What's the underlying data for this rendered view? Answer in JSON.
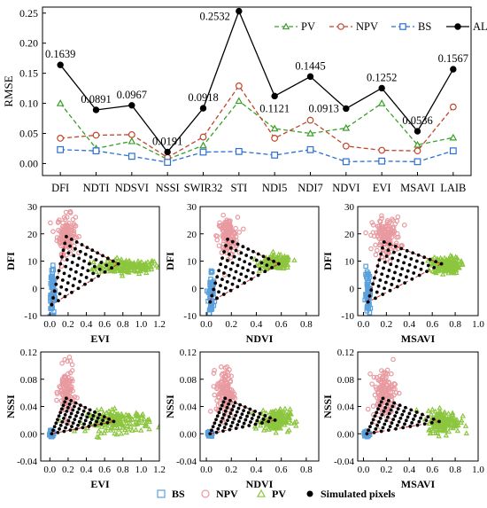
{
  "chart_data": [
    {
      "type": "line",
      "ylabel": "RMSE",
      "ylim": [
        -0.02,
        0.26
      ],
      "yticks": [
        "0.00",
        "0.05",
        "0.10",
        "0.15",
        "0.20",
        "0.25"
      ],
      "categories": [
        "DFI",
        "NDTI",
        "NDSVI",
        "NSSI",
        "SWIR32",
        "STI",
        "NDI5",
        "NDI7",
        "NDVI",
        "EVI",
        "MSAVI",
        "LAIB"
      ],
      "legend_position": "top-right",
      "series": [
        {
          "name": "PV",
          "color": "#3aa02a",
          "marker": "triangle",
          "dash": "dash",
          "values": [
            0.1,
            0.025,
            0.037,
            0.007,
            0.03,
            0.104,
            0.058,
            0.05,
            0.059,
            0.1,
            0.031,
            0.043
          ]
        },
        {
          "name": "NPV",
          "color": "#c0462b",
          "marker": "circle",
          "dash": "dash",
          "values": [
            0.042,
            0.047,
            0.048,
            0.01,
            0.044,
            0.129,
            0.042,
            0.072,
            0.029,
            0.022,
            0.021,
            0.094
          ]
        },
        {
          "name": "BS",
          "color": "#2a6fd4",
          "marker": "square",
          "dash": "dash",
          "values": [
            0.023,
            0.021,
            0.012,
            0.002,
            0.019,
            0.02,
            0.014,
            0.023,
            0.003,
            0.004,
            0.003,
            0.021
          ]
        },
        {
          "name": "ALL",
          "color": "#000000",
          "marker": "filled-circle",
          "dash": "solid",
          "values": [
            0.1639,
            0.0891,
            0.0967,
            0.0191,
            0.0918,
            0.2532,
            0.1121,
            0.1445,
            0.0913,
            0.1252,
            0.0536,
            0.1567
          ]
        }
      ],
      "value_labels": [
        {
          "index": 0,
          "text": "0.1639",
          "pos": "above"
        },
        {
          "index": 1,
          "text": "0.0891",
          "pos": "above"
        },
        {
          "index": 2,
          "text": "0.0967",
          "pos": "above"
        },
        {
          "index": 3,
          "text": "0.0191",
          "pos": "above"
        },
        {
          "index": 4,
          "text": "0.0918",
          "pos": "above"
        },
        {
          "index": 5,
          "text": "0.2532",
          "pos": "left"
        },
        {
          "index": 6,
          "text": "0.1121",
          "pos": "below"
        },
        {
          "index": 7,
          "text": "0.1445",
          "pos": "above"
        },
        {
          "index": 8,
          "text": "0.0913",
          "pos": "left"
        },
        {
          "index": 9,
          "text": "0.1252",
          "pos": "above"
        },
        {
          "index": 10,
          "text": "0.0536",
          "pos": "above"
        },
        {
          "index": 11,
          "text": "0.1567",
          "pos": "above"
        }
      ]
    },
    {
      "type": "scatter",
      "xlabel": "EVI",
      "ylabel": "DFI",
      "xlim": [
        -0.1,
        1.2
      ],
      "ylim": [
        -10,
        30
      ],
      "xticks": [
        "0.0",
        "0.2",
        "0.4",
        "0.6",
        "0.8",
        "1.0",
        "1.2"
      ],
      "yticks": [
        "-10",
        "0",
        "10",
        "20",
        "30"
      ],
      "endmembers": {
        "BS": [
          0.02,
          -6
        ],
        "NPV": [
          0.18,
          19
        ],
        "PV": [
          0.75,
          9
        ]
      },
      "npv_cloud": {
        "center": [
          0.18,
          20
        ],
        "spread": [
          0.05,
          3.5
        ]
      },
      "pv_cloud": {
        "center": [
          0.85,
          8
        ],
        "spread": [
          0.18,
          1.3
        ]
      },
      "bs_cloud": {
        "center": [
          0.03,
          -2
        ],
        "spread": [
          0.015,
          4.5
        ]
      }
    },
    {
      "type": "scatter",
      "xlabel": "NDVI",
      "ylabel": "DFI",
      "xlim": [
        -0.05,
        0.9
      ],
      "ylim": [
        -10,
        30
      ],
      "xticks": [
        "0.0",
        "0.2",
        "0.4",
        "0.6",
        "0.8"
      ],
      "yticks": [
        "-10",
        "0",
        "10",
        "20",
        "30"
      ],
      "endmembers": {
        "BS": [
          0.03,
          -5
        ],
        "NPV": [
          0.17,
          18
        ],
        "PV": [
          0.58,
          9
        ]
      },
      "npv_cloud": {
        "center": [
          0.17,
          19
        ],
        "spread": [
          0.04,
          3.5
        ]
      },
      "pv_cloud": {
        "center": [
          0.56,
          9.5
        ],
        "spread": [
          0.06,
          1.2
        ]
      },
      "bs_cloud": {
        "center": [
          0.04,
          -2
        ],
        "spread": [
          0.012,
          4.5
        ]
      }
    },
    {
      "type": "scatter",
      "xlabel": "MSAVI",
      "ylabel": "DFI",
      "xlim": [
        -0.05,
        1.0
      ],
      "ylim": [
        -10,
        30
      ],
      "xticks": [
        "0.0",
        "0.2",
        "0.4",
        "0.6",
        "0.8",
        "1.0"
      ],
      "yticks": [
        "-10",
        "0",
        "10",
        "20",
        "30"
      ],
      "endmembers": {
        "BS": [
          0.04,
          -5
        ],
        "NPV": [
          0.18,
          17
        ],
        "PV": [
          0.68,
          9
        ]
      },
      "npv_cloud": {
        "center": [
          0.2,
          19
        ],
        "spread": [
          0.06,
          3.5
        ]
      },
      "pv_cloud": {
        "center": [
          0.72,
          8.5
        ],
        "spread": [
          0.06,
          1.5
        ]
      },
      "bs_cloud": {
        "center": [
          0.04,
          -2
        ],
        "spread": [
          0.012,
          4.5
        ]
      }
    },
    {
      "type": "scatter",
      "xlabel": "EVI",
      "ylabel": "NSSI",
      "xlim": [
        -0.1,
        1.2
      ],
      "ylim": [
        -0.04,
        0.12
      ],
      "xticks": [
        "0.0",
        "0.2",
        "0.4",
        "0.6",
        "0.8",
        "1.0",
        "1.2"
      ],
      "yticks": [
        "-0.04",
        "0.00",
        "0.04",
        "0.08",
        "0.12"
      ],
      "endmembers": {
        "BS": [
          0.02,
          0.0
        ],
        "NPV": [
          0.18,
          0.052
        ],
        "PV": [
          0.7,
          0.018
        ]
      },
      "npv_cloud": {
        "center": [
          0.18,
          0.06
        ],
        "spread": [
          0.04,
          0.018
        ]
      },
      "pv_cloud": {
        "center": [
          0.75,
          0.018
        ],
        "spread": [
          0.17,
          0.008
        ]
      },
      "bs_cloud": {
        "center": [
          0.02,
          0.0
        ],
        "spread": [
          0.01,
          0.002
        ]
      }
    },
    {
      "type": "scatter",
      "xlabel": "NDVI",
      "ylabel": "NSSI",
      "xlim": [
        -0.05,
        0.9
      ],
      "ylim": [
        -0.04,
        0.12
      ],
      "xticks": [
        "0.0",
        "0.2",
        "0.4",
        "0.6",
        "0.8"
      ],
      "yticks": [
        "-0.04",
        "0.00",
        "0.04",
        "0.08",
        "0.12"
      ],
      "endmembers": {
        "BS": [
          0.03,
          0.0
        ],
        "NPV": [
          0.15,
          0.052
        ],
        "PV": [
          0.55,
          0.02
        ]
      },
      "npv_cloud": {
        "center": [
          0.15,
          0.06
        ],
        "spread": [
          0.035,
          0.018
        ]
      },
      "pv_cloud": {
        "center": [
          0.55,
          0.02
        ],
        "spread": [
          0.06,
          0.008
        ]
      },
      "bs_cloud": {
        "center": [
          0.03,
          0.0
        ],
        "spread": [
          0.01,
          0.002
        ]
      }
    },
    {
      "type": "scatter",
      "xlabel": "MSAVI",
      "ylabel": "NSSI",
      "xlim": [
        -0.05,
        1.0
      ],
      "ylim": [
        -0.04,
        0.12
      ],
      "xticks": [
        "0.0",
        "0.2",
        "0.4",
        "0.6",
        "0.8",
        "1.0"
      ],
      "yticks": [
        "-0.04",
        "0.00",
        "0.04",
        "0.08",
        "0.12"
      ],
      "endmembers": {
        "BS": [
          0.03,
          0.0
        ],
        "NPV": [
          0.17,
          0.052
        ],
        "PV": [
          0.66,
          0.018
        ]
      },
      "npv_cloud": {
        "center": [
          0.18,
          0.06
        ],
        "spread": [
          0.05,
          0.018
        ]
      },
      "pv_cloud": {
        "center": [
          0.7,
          0.018
        ],
        "spread": [
          0.07,
          0.008
        ]
      },
      "bs_cloud": {
        "center": [
          0.03,
          0.0
        ],
        "spread": [
          0.01,
          0.002
        ]
      }
    }
  ],
  "legend": {
    "items": [
      {
        "label": "BS",
        "marker": "square",
        "color": "#5aa0dc"
      },
      {
        "label": "NPV",
        "marker": "circle",
        "color": "#e89aa0"
      },
      {
        "label": "PV",
        "marker": "triangle",
        "color": "#8cc63f"
      },
      {
        "label": "Simulated pixels",
        "marker": "filled-circle",
        "color": "#000000"
      }
    ]
  },
  "colors": {
    "bs_point": "#5aa0dc",
    "npv_point": "#e89aa0",
    "pv_point": "#8cc63f",
    "simulated": "#000000",
    "hull_line": "#d62728"
  }
}
